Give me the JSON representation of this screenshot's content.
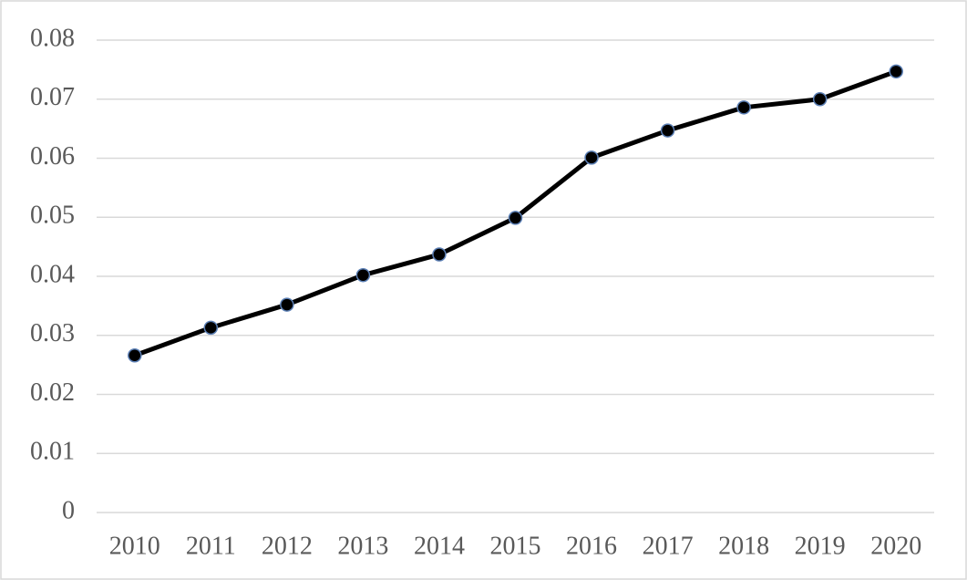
{
  "chart_data": {
    "type": "line",
    "categories": [
      "2010",
      "2011",
      "2012",
      "2013",
      "2014",
      "2015",
      "2016",
      "2017",
      "2018",
      "2019",
      "2020"
    ],
    "series": [
      {
        "color": "#000000",
        "marker_color": "#5b7fb5",
        "values": [
          0.0266,
          0.0313,
          0.0352,
          0.0402,
          0.0437,
          0.0499,
          0.0601,
          0.0647,
          0.0686,
          0.07,
          0.0747
        ]
      }
    ],
    "ylim": [
      0,
      0.08
    ],
    "yticks": [
      0,
      0.01,
      0.02,
      0.03,
      0.04,
      0.05,
      0.06,
      0.07,
      0.08
    ],
    "grid": true
  }
}
